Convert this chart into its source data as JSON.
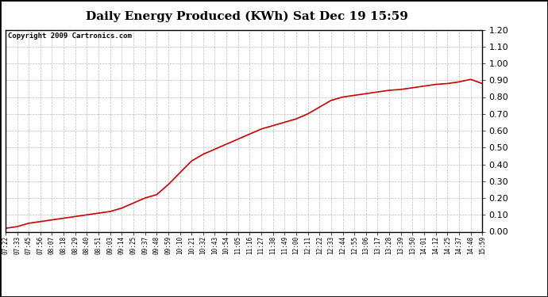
{
  "title": "Daily Energy Produced (KWh) Sat Dec 19 15:59",
  "copyright": "Copyright 2009 Cartronics.com",
  "line_color": "#cc0000",
  "background_color": "#ffffff",
  "plot_background": "#ffffff",
  "grid_color": "#bbbbbb",
  "ylim": [
    0.0,
    1.2
  ],
  "yticks": [
    0.0,
    0.1,
    0.2,
    0.3,
    0.4,
    0.5,
    0.6,
    0.7,
    0.8,
    0.9,
    1.0,
    1.1,
    1.2
  ],
  "x_labels": [
    "07:22",
    "07:33",
    "07:45",
    "07:56",
    "08:07",
    "08:18",
    "08:29",
    "08:40",
    "08:51",
    "09:03",
    "09:14",
    "09:25",
    "09:37",
    "09:48",
    "09:59",
    "10:10",
    "10:21",
    "10:32",
    "10:43",
    "10:54",
    "11:05",
    "11:16",
    "11:27",
    "11:38",
    "11:49",
    "12:00",
    "12:11",
    "12:22",
    "12:33",
    "12:44",
    "12:55",
    "13:06",
    "13:17",
    "13:28",
    "13:39",
    "13:50",
    "14:01",
    "14:12",
    "14:25",
    "14:37",
    "14:48",
    "15:59"
  ],
  "y_values": [
    0.02,
    0.03,
    0.05,
    0.06,
    0.07,
    0.08,
    0.09,
    0.1,
    0.11,
    0.12,
    0.14,
    0.17,
    0.2,
    0.22,
    0.28,
    0.35,
    0.42,
    0.46,
    0.49,
    0.52,
    0.55,
    0.58,
    0.61,
    0.63,
    0.65,
    0.67,
    0.7,
    0.74,
    0.78,
    0.8,
    0.81,
    0.82,
    0.83,
    0.84,
    0.845,
    0.855,
    0.865,
    0.875,
    0.88,
    0.89,
    0.905,
    0.88
  ]
}
